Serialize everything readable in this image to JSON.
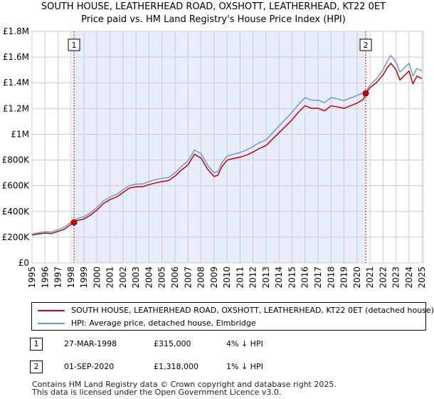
{
  "title_line1": "SOUTH HOUSE, LEATHERHEAD ROAD, OXSHOTT, LEATHERHEAD, KT22 0ET",
  "title_line2": "Price paid vs. HM Land Registry's House Price Index (HPI)",
  "chart_data": {
    "type": "line",
    "title": "Price paid vs. HM Land Registry's House Price Index (HPI)",
    "xlim": [
      1995,
      2025.1
    ],
    "ylim": [
      0,
      1800000
    ],
    "y_ticks": [
      {
        "value": 0,
        "label": "£0"
      },
      {
        "value": 200000,
        "label": "£200K"
      },
      {
        "value": 400000,
        "label": "£400K"
      },
      {
        "value": 600000,
        "label": "£600K"
      },
      {
        "value": 800000,
        "label": "£800K"
      },
      {
        "value": 1000000,
        "label": "£1M"
      },
      {
        "value": 1200000,
        "label": "£1.2M"
      },
      {
        "value": 1400000,
        "label": "£1.4M"
      },
      {
        "value": 1600000,
        "label": "£1.6M"
      },
      {
        "value": 1800000,
        "label": "£1.8M"
      }
    ],
    "x_ticks": [
      "1995",
      "1996",
      "1997",
      "1998",
      "1999",
      "2000",
      "2001",
      "2002",
      "2003",
      "2004",
      "2005",
      "2006",
      "2007",
      "2008",
      "2009",
      "2010",
      "2011",
      "2012",
      "2013",
      "2014",
      "2015",
      "2016",
      "2017",
      "2018",
      "2019",
      "2020",
      "2021",
      "2022",
      "2023",
      "2024",
      "2025"
    ],
    "grid": true,
    "highlight_span": [
      1998.23,
      2020.67
    ],
    "colors": {
      "property": "#cc0000",
      "hpi": "#6a9ad4",
      "shade": "#e8edfb",
      "grid": "#cccccc"
    },
    "series": [
      {
        "name": "SOUTH HOUSE, LEATHERHEAD ROAD, OXSHOTT, LEATHERHEAD, KT22 0ET (detached house)",
        "color": "#cc0000",
        "x": [
          1995,
          1995.5,
          1996,
          1996.5,
          1997,
          1997.5,
          1998,
          1998.23,
          1998.5,
          1999,
          1999.5,
          2000,
          2000.5,
          2001,
          2001.5,
          2002,
          2002.5,
          2003,
          2003.5,
          2004,
          2004.5,
          2005,
          2005.5,
          2006,
          2006.5,
          2007,
          2007.5,
          2008,
          2008.5,
          2009,
          2009.3,
          2009.6,
          2010,
          2010.5,
          2011,
          2011.5,
          2012,
          2012.5,
          2013,
          2013.5,
          2014,
          2014.5,
          2015,
          2015.5,
          2016,
          2016.5,
          2017,
          2017.5,
          2018,
          2018.5,
          2019,
          2019.5,
          2020,
          2020.5,
          2020.67,
          2021,
          2021.5,
          2022,
          2022.3,
          2022.6,
          2023,
          2023.3,
          2023.6,
          2024,
          2024.3,
          2024.6,
          2025
        ],
        "y": [
          215000,
          225000,
          232000,
          228000,
          245000,
          262000,
          300000,
          315000,
          330000,
          342000,
          372000,
          412000,
          462000,
          492000,
          512000,
          548000,
          582000,
          592000,
          592000,
          608000,
          622000,
          632000,
          640000,
          675000,
          722000,
          762000,
          845000,
          815000,
          730000,
          672000,
          682000,
          748000,
          798000,
          812000,
          822000,
          838000,
          862000,
          890000,
          912000,
          962000,
          1012000,
          1062000,
          1112000,
          1172000,
          1222000,
          1202000,
          1202000,
          1182000,
          1222000,
          1212000,
          1202000,
          1222000,
          1242000,
          1272000,
          1318000,
          1362000,
          1402000,
          1462000,
          1512000,
          1552000,
          1502000,
          1422000,
          1452000,
          1492000,
          1392000,
          1452000,
          1432000
        ]
      },
      {
        "name": "HPI: Average price, detached house, Elmbridge",
        "color": "#6a9ad4",
        "x": [
          1995,
          1995.5,
          1996,
          1996.5,
          1997,
          1997.5,
          1998,
          1998.23,
          1998.5,
          1999,
          1999.5,
          2000,
          2000.5,
          2001,
          2001.5,
          2002,
          2002.5,
          2003,
          2003.5,
          2004,
          2004.5,
          2005,
          2005.5,
          2006,
          2006.5,
          2007,
          2007.5,
          2008,
          2008.5,
          2009,
          2009.3,
          2009.6,
          2010,
          2010.5,
          2011,
          2011.5,
          2012,
          2012.5,
          2013,
          2013.5,
          2014,
          2014.5,
          2015,
          2015.5,
          2016,
          2016.5,
          2017,
          2017.5,
          2018,
          2018.5,
          2019,
          2019.5,
          2020,
          2020.5,
          2020.67,
          2021,
          2021.5,
          2022,
          2022.3,
          2022.6,
          2023,
          2023.3,
          2023.6,
          2024,
          2024.3,
          2024.6,
          2025
        ],
        "y": [
          225000,
          235000,
          242000,
          240000,
          258000,
          278000,
          315000,
          330000,
          345000,
          360000,
          390000,
          432000,
          482000,
          512000,
          532000,
          568000,
          602000,
          612000,
          614000,
          632000,
          648000,
          658000,
          664000,
          700000,
          752000,
          792000,
          878000,
          850000,
          760000,
          700000,
          712000,
          778000,
          830000,
          845000,
          858000,
          878000,
          905000,
          935000,
          958000,
          1010000,
          1065000,
          1118000,
          1170000,
          1232000,
          1285000,
          1265000,
          1265000,
          1245000,
          1285000,
          1275000,
          1262000,
          1282000,
          1302000,
          1322000,
          1331000,
          1382000,
          1432000,
          1502000,
          1562000,
          1612000,
          1562000,
          1482000,
          1512000,
          1552000,
          1452000,
          1512000,
          1492000
        ]
      }
    ],
    "annotations": [
      {
        "label": "1",
        "x": 1998.23,
        "price": 315000
      },
      {
        "label": "2",
        "x": 2020.67,
        "price": 1318000
      }
    ]
  },
  "legend": {
    "property_label": "SOUTH HOUSE, LEATHERHEAD ROAD, OXSHOTT, LEATHERHEAD, KT22 0ET (detached house)",
    "hpi_label": "HPI: Average price, detached house, Elmbridge"
  },
  "sales": [
    {
      "num": "1",
      "date": "27-MAR-1998",
      "price": "£315,000",
      "hpi": "4% ↓ HPI"
    },
    {
      "num": "2",
      "date": "01-SEP-2020",
      "price": "£1,318,000",
      "hpi": "1% ↓ HPI"
    }
  ],
  "footer_line1": "Contains HM Land Registry data © Crown copyright and database right 2025.",
  "footer_line2": "This data is licensed under the Open Government Licence v3.0."
}
